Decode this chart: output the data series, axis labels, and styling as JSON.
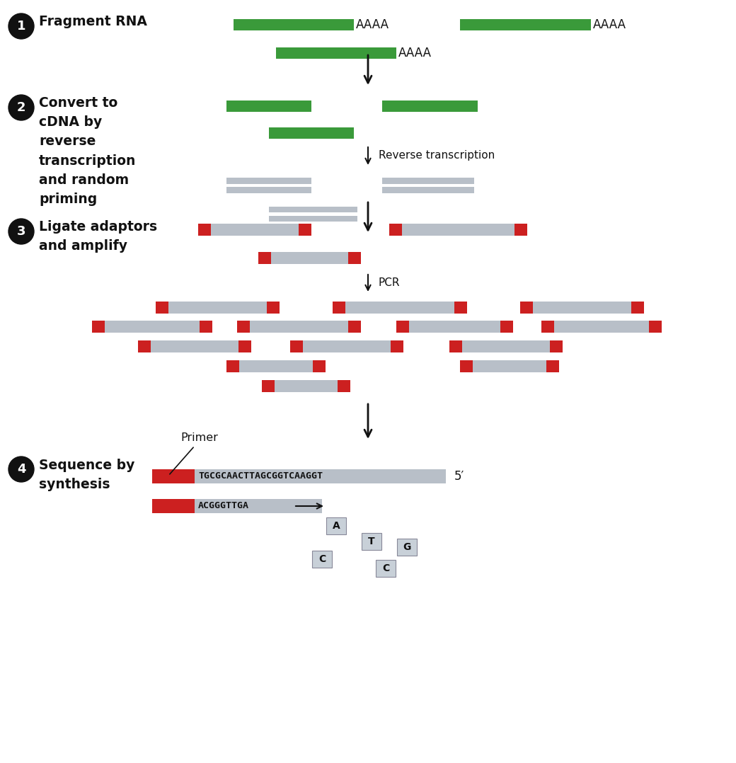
{
  "background_color": "#ffffff",
  "green_color": "#3a9a3a",
  "gray_color": "#b8bfc8",
  "red_color": "#cc2020",
  "black_color": "#111111",
  "step1_label": "Fragment RNA",
  "step2_label": "Convert to\ncDNA by\nreverse\ntranscription\nand random\npriming",
  "step3_label": "Ligate adaptors\nand amplify",
  "step4_label": "Sequence by\nsynthesis",
  "reverse_transcription_label": "Reverse transcription",
  "pcr_label": "PCR",
  "primer_label": "Primer",
  "seq1": "TGCGCAACTTAGCGGTCAAGGT",
  "seq2": "ACGGGTTGA",
  "five_prime": "5′"
}
